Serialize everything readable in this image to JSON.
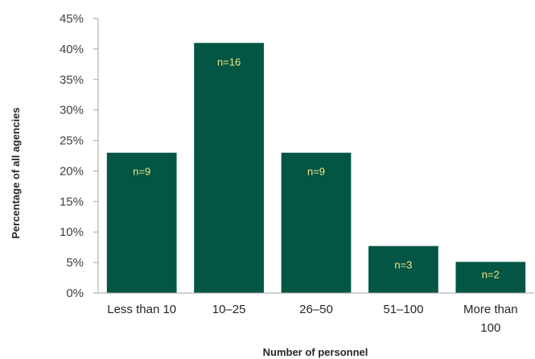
{
  "chart_data": {
    "type": "bar",
    "title": "",
    "xlabel": "Number of personnel",
    "ylabel": "Percentage of all agencies",
    "categories": [
      [
        "Less than 10"
      ],
      [
        "10–25"
      ],
      [
        "26–50"
      ],
      [
        "51–100"
      ],
      [
        "More than",
        "100"
      ]
    ],
    "values": [
      23,
      41,
      23,
      7.7,
      5.1
    ],
    "data_labels": [
      "n=9",
      "n=16",
      "n=9",
      "n=3",
      "n=2"
    ],
    "ylim": [
      0,
      45
    ],
    "yticks": [
      0,
      5,
      10,
      15,
      20,
      25,
      30,
      35,
      40,
      45
    ],
    "ytick_suffix": "%",
    "grid": false,
    "legend": "none",
    "colors": {
      "bar": "#025643",
      "data_label": "#f2e58a",
      "axis": "#a6a6a6"
    }
  }
}
